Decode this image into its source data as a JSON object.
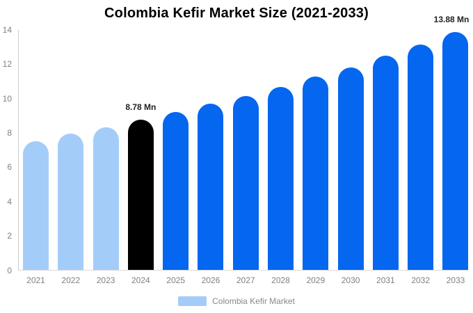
{
  "title": "Colombia Kefir Market Size (2021-2033)",
  "legend": {
    "label": "Colombia Kefir Market",
    "swatch_color": "#A3CDF8"
  },
  "colors": {
    "historical_bar": "#A3CDF8",
    "highlight_bar": "#000000",
    "forecast_bar": "#0566F0",
    "axis_line": "#cccccc",
    "baseline": "#d9d9d9",
    "tick_text": "#808080",
    "annotation_text": "#222222",
    "title_text": "#000000"
  },
  "chart_data": {
    "type": "bar",
    "title": "Colombia Kefir Market Size (2021-2033)",
    "unit": "Mn",
    "categories": [
      "2021",
      "2022",
      "2023",
      "2024",
      "2025",
      "2026",
      "2027",
      "2028",
      "2029",
      "2030",
      "2031",
      "2032",
      "2033"
    ],
    "values": [
      7.5,
      7.95,
      8.32,
      8.78,
      9.2,
      9.7,
      10.15,
      10.67,
      11.28,
      11.8,
      12.5,
      13.15,
      13.88
    ],
    "color_roles": [
      "historical",
      "historical",
      "historical",
      "highlight",
      "forecast",
      "forecast",
      "forecast",
      "forecast",
      "forecast",
      "forecast",
      "forecast",
      "forecast",
      "forecast"
    ],
    "annotations": [
      {
        "category": "2024",
        "text": "8.78 Mn"
      },
      {
        "category": "2033",
        "text": "13.88 Mn"
      }
    ],
    "xlabel": "",
    "ylabel": "",
    "ylim": [
      0,
      14
    ],
    "yticks": [
      0,
      2,
      4,
      6,
      8,
      10,
      12,
      14
    ],
    "grid": false,
    "legend_entries": [
      {
        "label": "Colombia Kefir Market",
        "color": "#A3CDF8"
      }
    ],
    "legend_position": "bottom"
  }
}
